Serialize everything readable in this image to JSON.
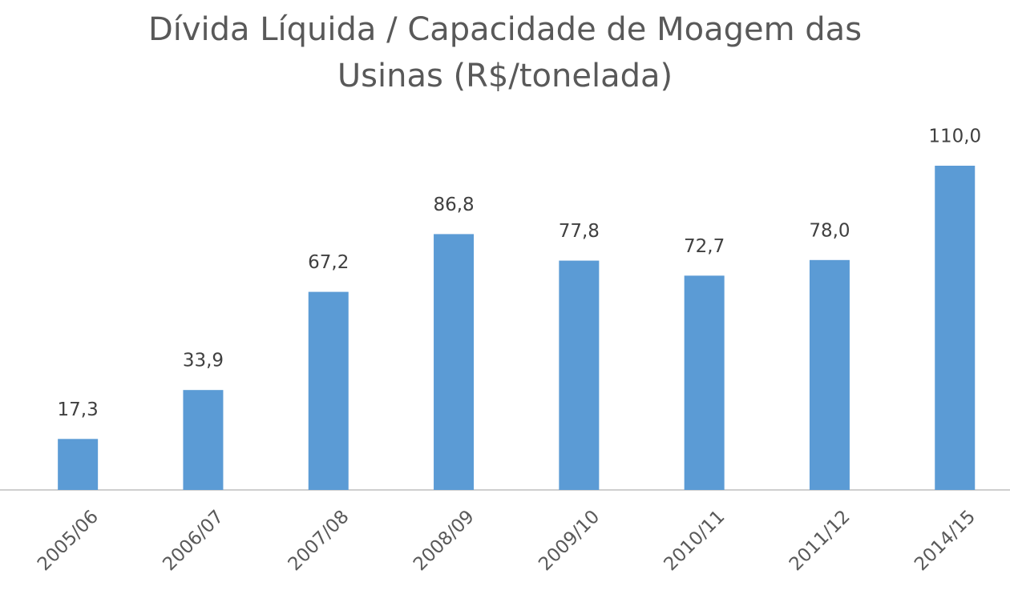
{
  "chart_data": {
    "type": "bar",
    "title": "Dívida Líquida / Capacidade de Moagem das Usinas (R$/tonelada)",
    "categories": [
      "2005/06",
      "2006/07",
      "2007/08",
      "2008/09",
      "2009/10",
      "2010/11",
      "2011/12",
      "2014/15"
    ],
    "values": [
      17.3,
      33.9,
      67.2,
      86.8,
      77.8,
      72.7,
      78.0,
      110.0
    ],
    "value_labels": [
      "17,3",
      "33,9",
      "67,2",
      "86,8",
      "77,8",
      "72,7",
      "78,0",
      "110,0"
    ],
    "color": "#5b9bd5",
    "ylim": [
      0,
      110
    ]
  }
}
